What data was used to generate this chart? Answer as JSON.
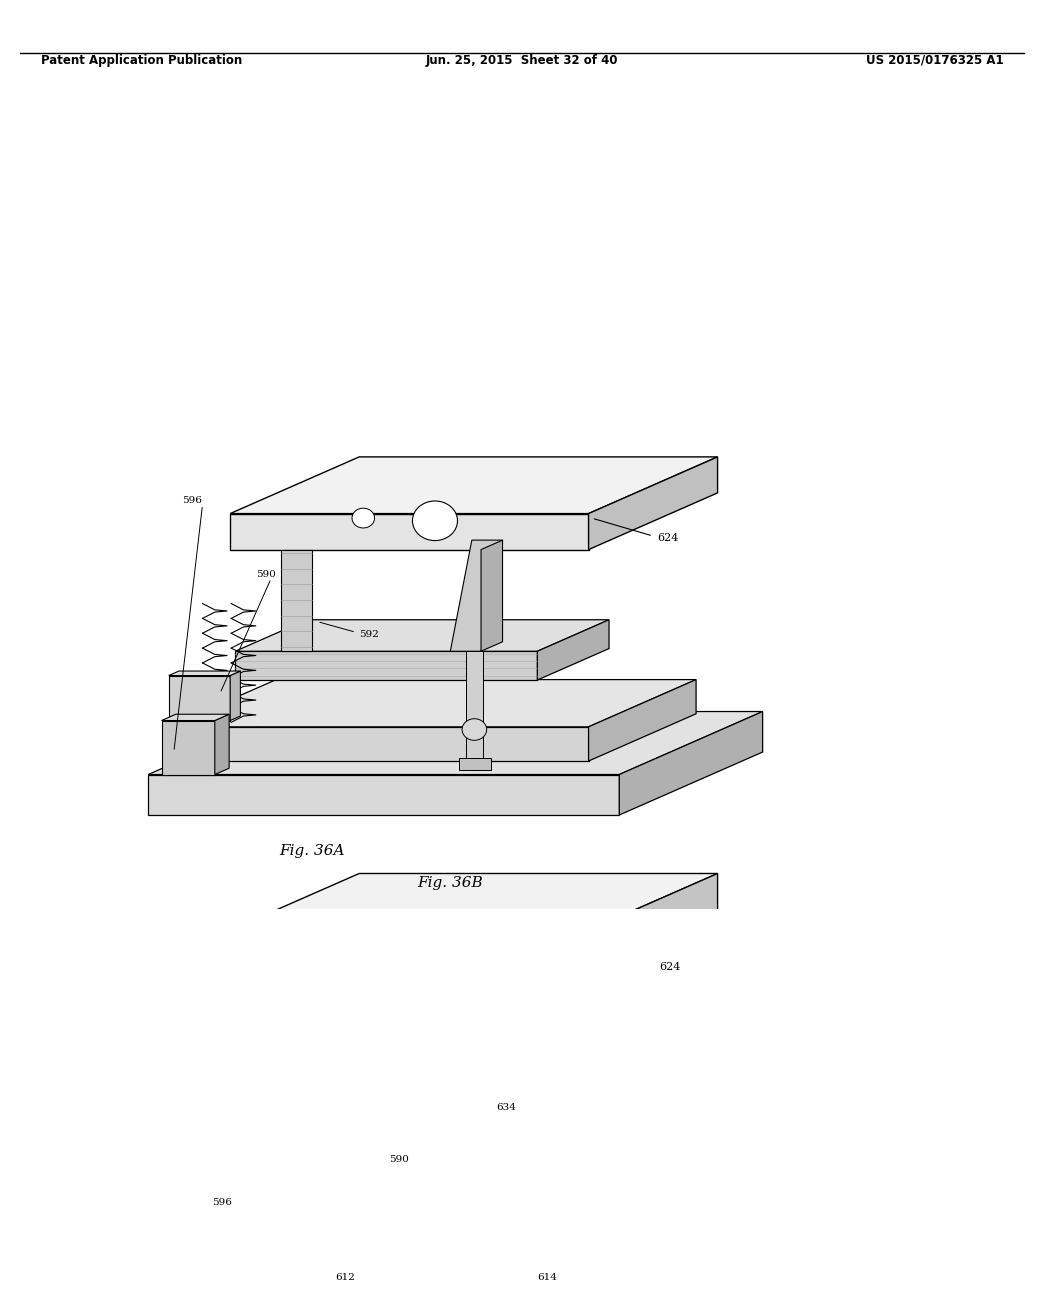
{
  "background_color": "#ffffff",
  "header_left": "Patent Application Publication",
  "header_center": "Jun. 25, 2015  Sheet 32 of 40",
  "header_right": "US 2015/0176325 A1",
  "fig_label_a": "Fig. 36A",
  "fig_label_b": "Fig. 36B"
}
